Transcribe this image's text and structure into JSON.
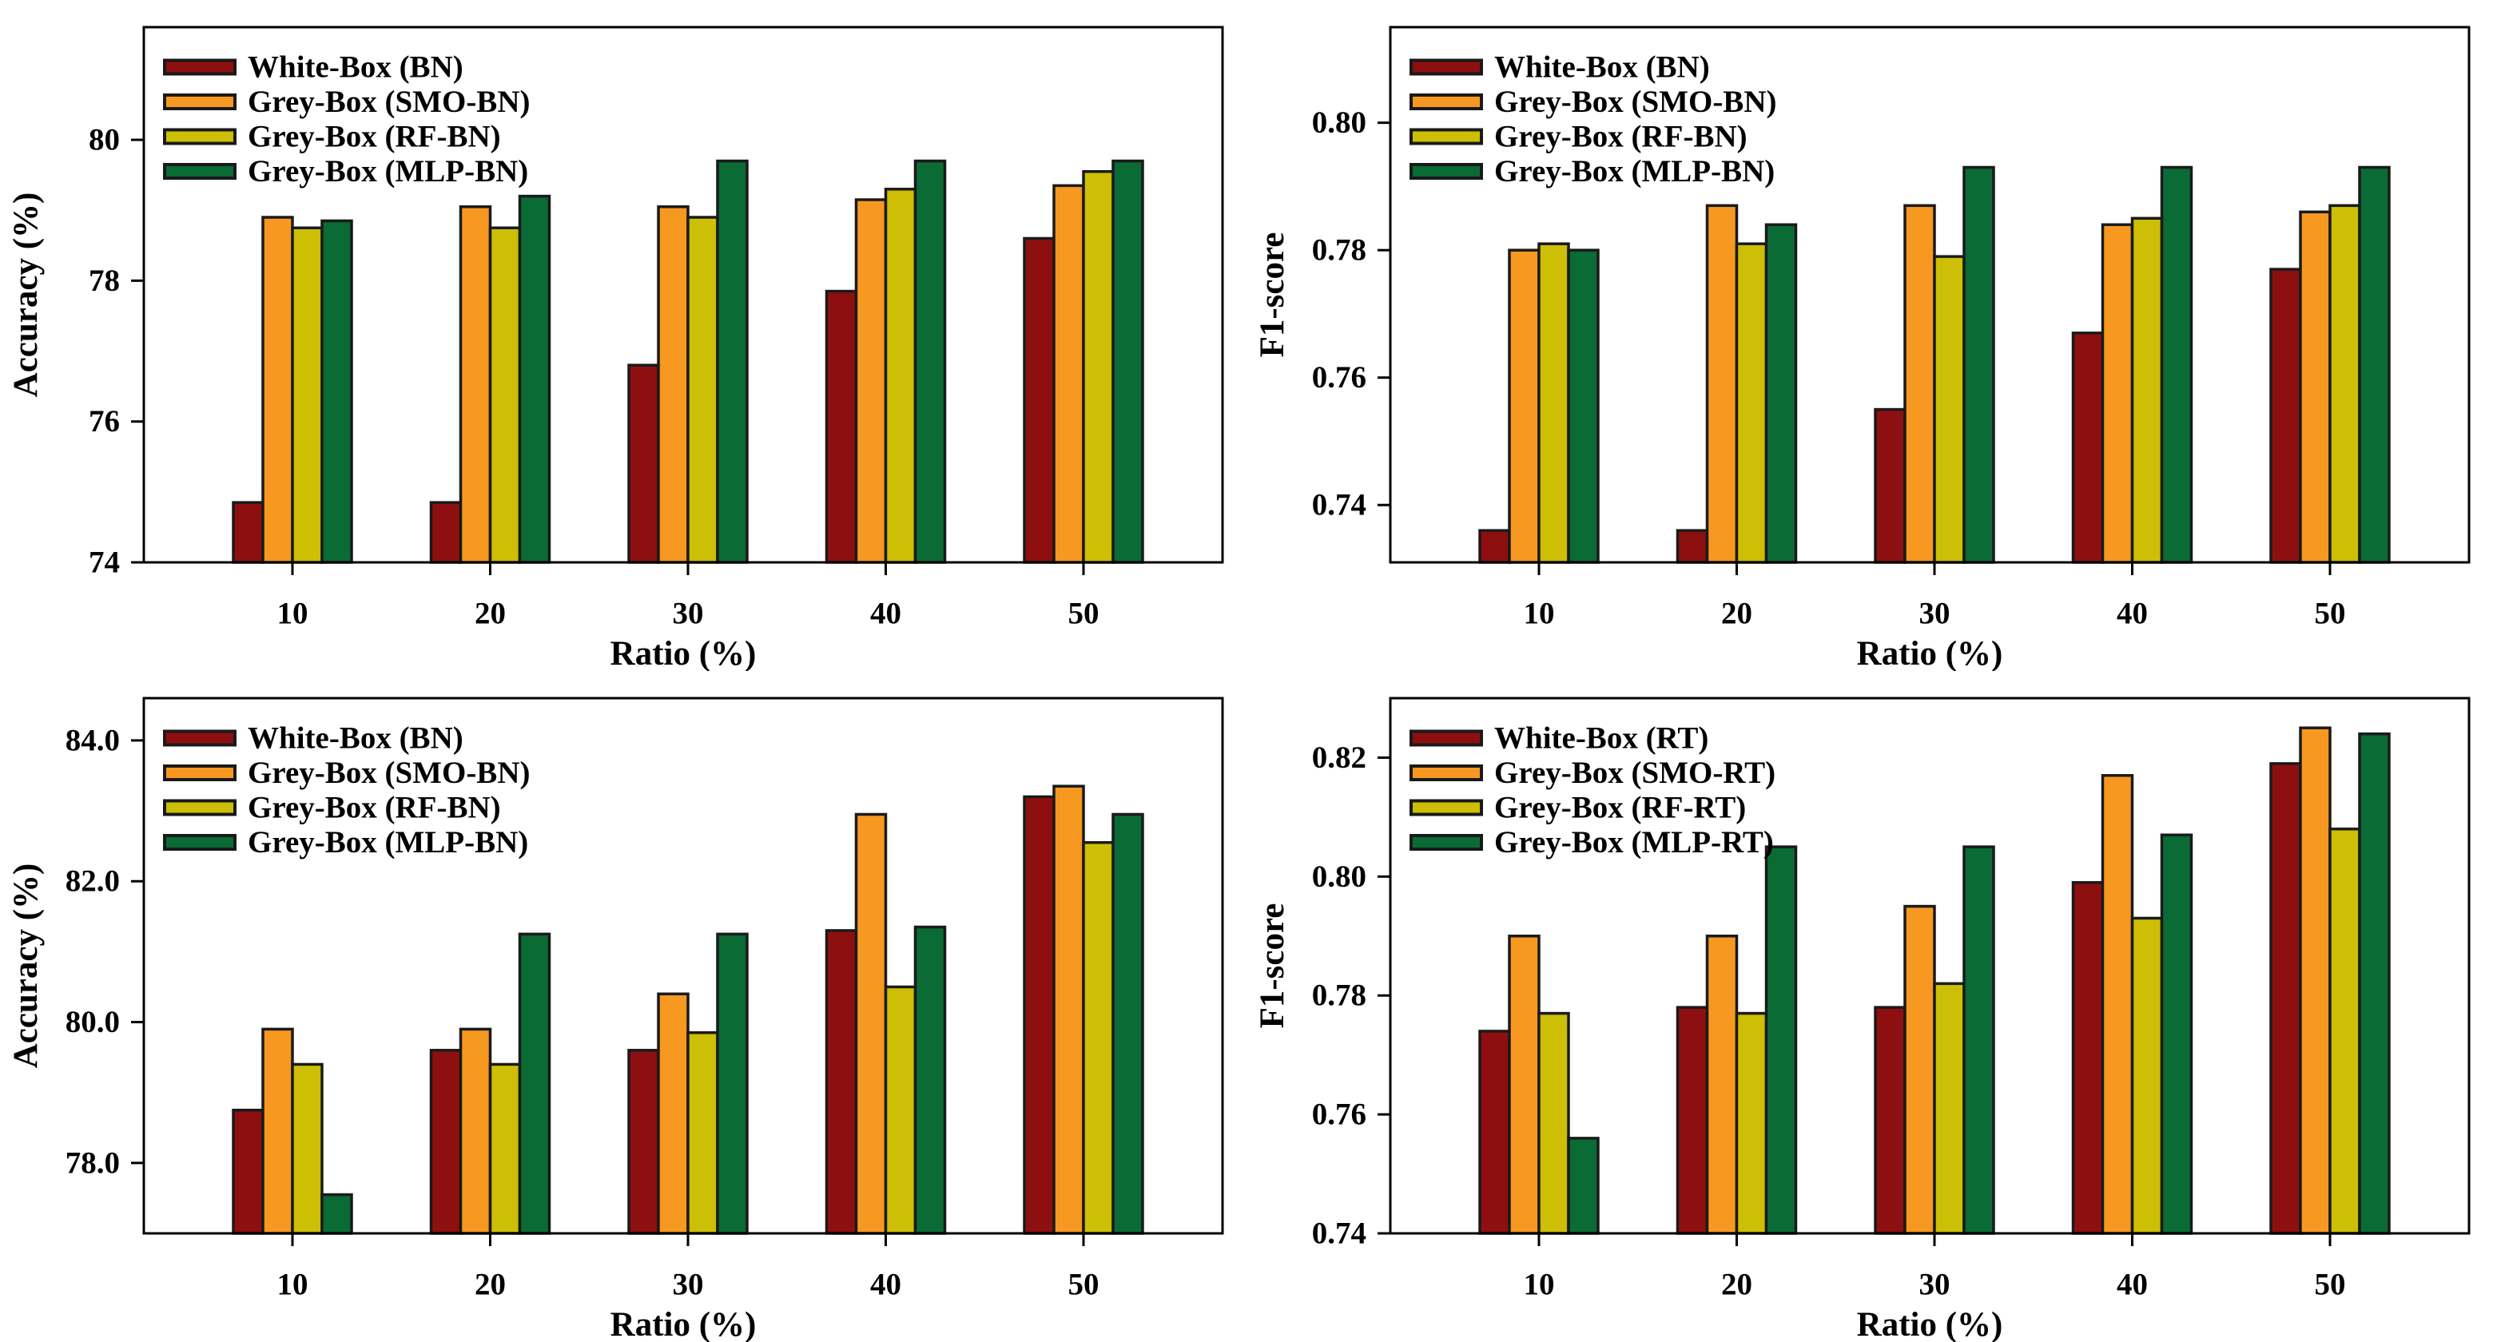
{
  "page": {
    "background": "#ffffff",
    "description": "2x2 grid of grouped bar charts comparing White-Box and Grey-Box attack models over training ratios"
  },
  "colors": {
    "white_box": "#8E0F10",
    "smo": "#F79821",
    "rf": "#CCBF05",
    "mlp": "#0A6B35",
    "bar_outline": "#1A1A1A",
    "axis": "#000000",
    "text": "#000000"
  },
  "chart_data": [
    {
      "id": "accuracy-bn-top-left",
      "type": "bar",
      "title": "",
      "xlabel": "Ratio (%)",
      "ylabel": "Accuracy (%)",
      "categories": [
        "10",
        "20",
        "30",
        "40",
        "50"
      ],
      "series": [
        {
          "name": "White-Box (BN)",
          "color": "white_box",
          "values": [
            74.85,
            74.85,
            76.8,
            77.85,
            78.6
          ]
        },
        {
          "name": "Grey-Box (SMO-BN)",
          "color": "smo",
          "values": [
            78.9,
            79.05,
            79.05,
            79.15,
            79.35
          ]
        },
        {
          "name": "Grey-Box (RF-BN)",
          "color": "rf",
          "values": [
            78.75,
            78.75,
            78.9,
            79.3,
            79.55
          ]
        },
        {
          "name": "Grey-Box (MLP-BN)",
          "color": "mlp",
          "values": [
            78.85,
            79.2,
            79.7,
            79.7,
            79.7
          ]
        }
      ],
      "ylim": [
        74,
        81.6
      ],
      "yticks": [
        74,
        76,
        78,
        80
      ],
      "ytick_format": "int",
      "legend_position": "upper-left",
      "grid": false
    },
    {
      "id": "f1-bn-top-right",
      "type": "bar",
      "title": "",
      "xlabel": "Ratio (%)",
      "ylabel": "F1-score",
      "categories": [
        "10",
        "20",
        "30",
        "40",
        "50"
      ],
      "series": [
        {
          "name": "White-Box (BN)",
          "color": "white_box",
          "values": [
            0.736,
            0.736,
            0.755,
            0.767,
            0.777
          ]
        },
        {
          "name": "Grey-Box (SMO-BN)",
          "color": "smo",
          "values": [
            0.78,
            0.787,
            0.787,
            0.784,
            0.786
          ]
        },
        {
          "name": "Grey-Box (RF-BN)",
          "color": "rf",
          "values": [
            0.781,
            0.781,
            0.779,
            0.785,
            0.787
          ]
        },
        {
          "name": "Grey-Box (MLP-BN)",
          "color": "mlp",
          "values": [
            0.78,
            0.784,
            0.793,
            0.793,
            0.793
          ]
        }
      ],
      "ylim": [
        0.731,
        0.815
      ],
      "yticks": [
        0.74,
        0.76,
        0.78,
        0.8
      ],
      "ytick_format": "2dp",
      "legend_position": "upper-left",
      "grid": false
    },
    {
      "id": "accuracy-bn-bottom-left",
      "type": "bar",
      "title": "",
      "xlabel": "Ratio (%)",
      "ylabel": "Accuracy (%)",
      "categories": [
        "10",
        "20",
        "30",
        "40",
        "50"
      ],
      "series": [
        {
          "name": "White-Box (BN)",
          "color": "white_box",
          "values": [
            78.75,
            79.6,
            79.6,
            81.3,
            83.2
          ]
        },
        {
          "name": "Grey-Box (SMO-BN)",
          "color": "smo",
          "values": [
            79.9,
            79.9,
            80.4,
            82.95,
            83.35
          ]
        },
        {
          "name": "Grey-Box (RF-BN)",
          "color": "rf",
          "values": [
            79.4,
            79.4,
            79.85,
            80.5,
            82.55
          ]
        },
        {
          "name": "Grey-Box (MLP-BN)",
          "color": "mlp",
          "values": [
            77.55,
            81.25,
            81.25,
            81.35,
            82.95
          ]
        }
      ],
      "ylim": [
        77.0,
        84.6
      ],
      "yticks": [
        78,
        80,
        82,
        84
      ],
      "ytick_format": "1dp",
      "legend_position": "upper-left",
      "grid": false
    },
    {
      "id": "f1-rt-bottom-right",
      "type": "bar",
      "title": "",
      "xlabel": "Ratio (%)",
      "ylabel": "F1-score",
      "categories": [
        "10",
        "20",
        "30",
        "40",
        "50"
      ],
      "series": [
        {
          "name": "White-Box (RT)",
          "color": "white_box",
          "values": [
            0.774,
            0.778,
            0.778,
            0.799,
            0.819
          ]
        },
        {
          "name": "Grey-Box (SMO-RT)",
          "color": "smo",
          "values": [
            0.79,
            0.79,
            0.795,
            0.817,
            0.825
          ]
        },
        {
          "name": "Grey-Box (RF-RT)",
          "color": "rf",
          "values": [
            0.777,
            0.777,
            0.782,
            0.793,
            0.808
          ]
        },
        {
          "name": "Grey-Box (MLP-RT)",
          "color": "mlp",
          "values": [
            0.756,
            0.805,
            0.805,
            0.807,
            0.824
          ]
        }
      ],
      "ylim": [
        0.74,
        0.83
      ],
      "yticks": [
        0.74,
        0.76,
        0.78,
        0.8,
        0.82
      ],
      "ytick_format": "2dp",
      "legend_position": "upper-left",
      "grid": false
    }
  ]
}
